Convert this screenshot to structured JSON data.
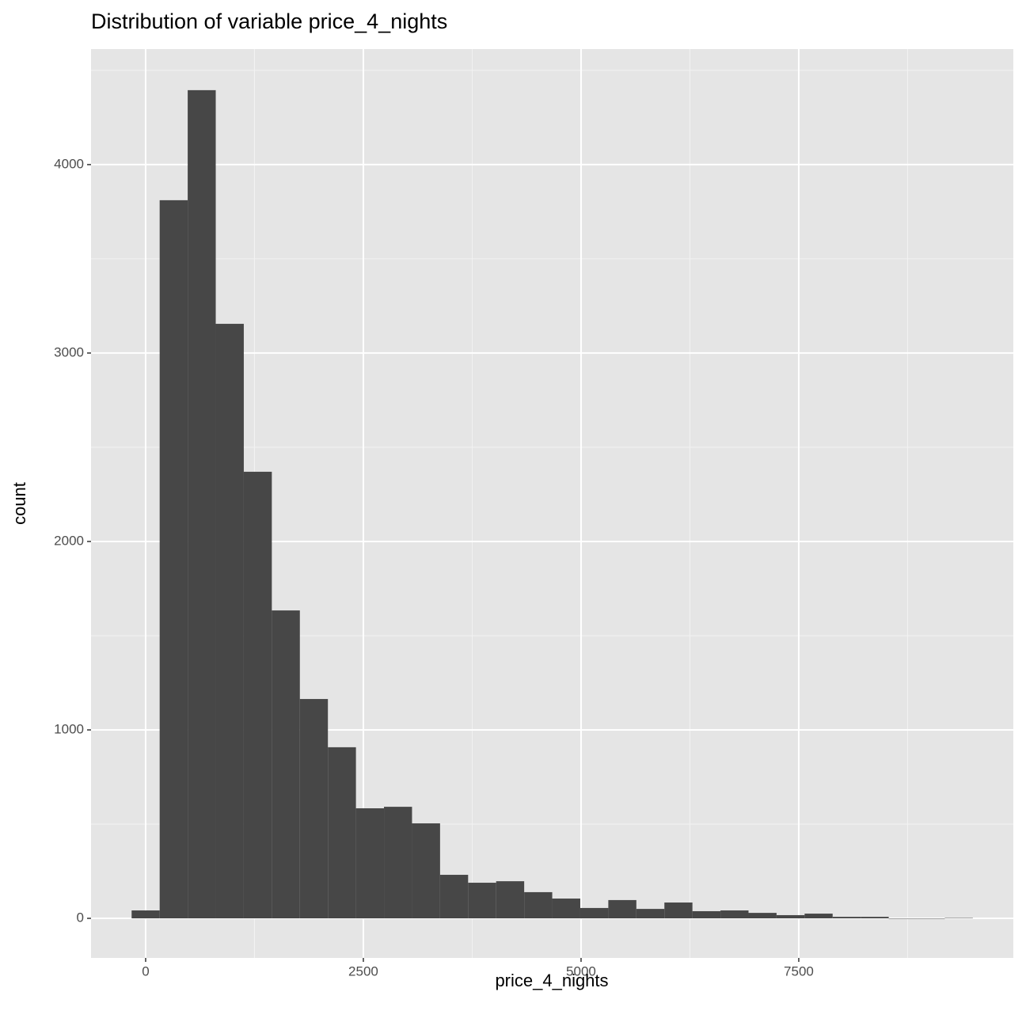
{
  "chart_data": {
    "type": "histogram",
    "title": "Distribution of variable price_4_nights",
    "x_label": "price_4_nights",
    "y_label": "count",
    "color": "#474747",
    "bins": [
      -161,
      161,
      483,
      805,
      1127,
      1449,
      1771,
      2093,
      2415,
      2737,
      3059,
      3381,
      3703,
      4025,
      4347,
      4669,
      4991,
      5313,
      5635,
      5957,
      6279,
      6601,
      6923,
      7245,
      7567,
      7889,
      8211,
      8533,
      8855,
      9177,
      9499
    ],
    "values": [
      42,
      3811,
      4395,
      3155,
      2370,
      1634,
      1164,
      908,
      584,
      592,
      504,
      231,
      189,
      197,
      139,
      105,
      55,
      97,
      50,
      84,
      38,
      42,
      29,
      17,
      25,
      8,
      8,
      0,
      0,
      2
    ],
    "xlim": [
      -627,
      9964
    ],
    "ylim": [
      -210,
      4613
    ],
    "xticks": [
      0,
      2500,
      5000,
      7500
    ],
    "yticks": [
      0,
      1000,
      2000,
      3000,
      4000
    ],
    "x_minor_grid": [
      1250,
      3750,
      6250,
      8750
    ],
    "y_minor_grid": [
      500,
      1500,
      2500,
      3500,
      4500
    ],
    "grid": true
  }
}
